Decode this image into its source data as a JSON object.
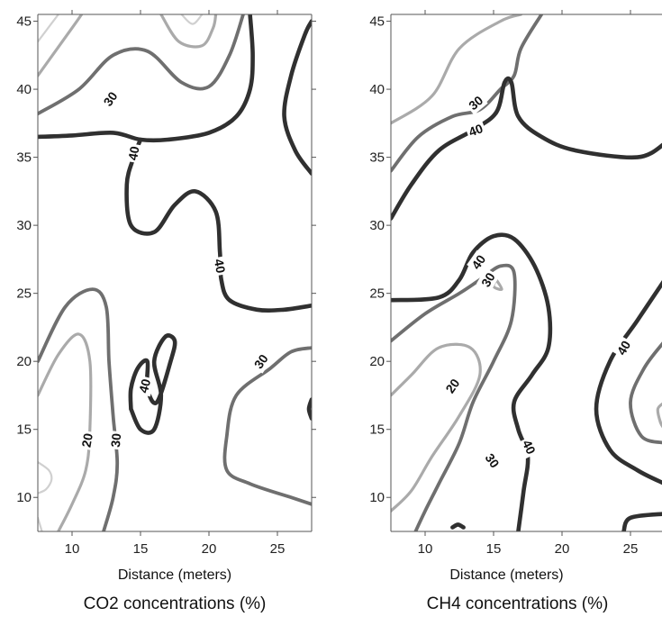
{
  "chart_data": [
    {
      "type": "contour",
      "title": "CO2 concentrations (%)",
      "xlabel": "Distance (meters)",
      "ylabel": "",
      "xlim": [
        7.5,
        27.5
      ],
      "ylim": [
        7.5,
        45.5
      ],
      "xticks": [
        10,
        15,
        20,
        25
      ],
      "yticks": [
        10,
        15,
        20,
        25,
        30,
        35,
        40,
        45
      ],
      "contour_levels": [
        10,
        20,
        30,
        40
      ],
      "level_colors": {
        "10": "#d0d0d0",
        "20": "#aaaaaa",
        "30": "#6f6f6f",
        "40": "#303030"
      },
      "contours": [
        {
          "level": 10,
          "points": [
            [
              7.5,
              43.5
            ],
            [
              9.0,
              45.5
            ]
          ]
        },
        {
          "level": 10,
          "points": [
            [
              7.5,
              12.6
            ],
            [
              8.3,
              12.0
            ],
            [
              8.5,
              11.3
            ],
            [
              8.1,
              10.6
            ],
            [
              7.5,
              10.3
            ]
          ]
        },
        {
          "level": 10,
          "points": [
            [
              7.5,
              8.5
            ],
            [
              7.8,
              7.5
            ]
          ]
        },
        {
          "level": 10,
          "points": [
            [
              18.0,
              45.5
            ],
            [
              18.8,
              44.8
            ],
            [
              19.5,
              45.5
            ]
          ]
        },
        {
          "level": 20,
          "points": [
            [
              7.5,
              41.0
            ],
            [
              10.0,
              44.5
            ],
            [
              10.7,
              45.5
            ]
          ]
        },
        {
          "level": 20,
          "points": [
            [
              16.5,
              45.5
            ],
            [
              17.8,
              43.5
            ],
            [
              19.5,
              43.2
            ],
            [
              20.3,
              44.5
            ],
            [
              20.5,
              45.5
            ]
          ]
        },
        {
          "level": 20,
          "points": [
            [
              7.5,
              17.5
            ],
            [
              9.0,
              20.5
            ],
            [
              10.5,
              22.0
            ],
            [
              11.3,
              20.0
            ],
            [
              11.3,
              15.0
            ],
            [
              11.0,
              12.0
            ],
            [
              10.0,
              9.5
            ],
            [
              9.0,
              7.5
            ]
          ]
        },
        {
          "level": 30,
          "points": [
            [
              7.5,
              38.2
            ],
            [
              10.5,
              40.0
            ],
            [
              13.0,
              42.5
            ],
            [
              15.5,
              42.8
            ],
            [
              18.0,
              40.5
            ],
            [
              20.0,
              40.2
            ],
            [
              21.5,
              42.5
            ],
            [
              22.5,
              45.5
            ]
          ]
        },
        {
          "level": 30,
          "points": [
            [
              7.5,
              20.0
            ],
            [
              9.5,
              24.0
            ],
            [
              11.5,
              25.3
            ],
            [
              12.5,
              24.0
            ],
            [
              12.7,
              20.0
            ],
            [
              13.0,
              16.0
            ],
            [
              13.3,
              12.5
            ],
            [
              13.0,
              10.0
            ],
            [
              12.3,
              7.5
            ]
          ]
        },
        {
          "level": 30,
          "points": [
            [
              27.5,
              21.0
            ],
            [
              26.0,
              20.7
            ],
            [
              24.5,
              19.5
            ],
            [
              22.0,
              17.5
            ],
            [
              21.3,
              14.5
            ],
            [
              21.3,
              12.0
            ],
            [
              23.0,
              11.0
            ],
            [
              26.0,
              10.0
            ],
            [
              27.5,
              9.5
            ]
          ]
        },
        {
          "level": 40,
          "points": [
            [
              7.5,
              36.5
            ],
            [
              10.0,
              36.6
            ],
            [
              13.0,
              36.8
            ],
            [
              15.0,
              36.3
            ],
            [
              17.0,
              36.3
            ],
            [
              20.0,
              36.8
            ],
            [
              22.0,
              38.0
            ],
            [
              23.0,
              40.0
            ],
            [
              23.2,
              42.5
            ],
            [
              23.0,
              45.5
            ]
          ]
        },
        {
          "level": 40,
          "points": [
            [
              27.5,
              33.8
            ],
            [
              26.3,
              35.5
            ],
            [
              25.5,
              38.0
            ],
            [
              26.0,
              41.0
            ],
            [
              27.0,
              44.0
            ],
            [
              27.5,
              45.0
            ]
          ]
        },
        {
          "level": 40,
          "points": [
            [
              15.0,
              36.3
            ],
            [
              14.5,
              35.0
            ],
            [
              14.0,
              33.0
            ],
            [
              14.3,
              30.0
            ],
            [
              16.0,
              29.5
            ],
            [
              17.5,
              31.5
            ],
            [
              19.0,
              32.5
            ],
            [
              20.5,
              31.0
            ],
            [
              20.8,
              28.0
            ],
            [
              20.9,
              26.0
            ],
            [
              21.5,
              24.5
            ],
            [
              23.5,
              23.8
            ],
            [
              25.5,
              23.8
            ],
            [
              27.5,
              24.1
            ]
          ]
        },
        {
          "level": 40,
          "points": [
            [
              14.3,
              16.5
            ],
            [
              15.0,
              15.0
            ],
            [
              16.0,
              15.0
            ],
            [
              16.5,
              17.5
            ],
            [
              16.0,
              20.0
            ],
            [
              16.8,
              21.8
            ],
            [
              17.5,
              21.5
            ],
            [
              17.2,
              20.0
            ],
            [
              16.2,
              17.0
            ],
            [
              15.5,
              18.0
            ],
            [
              15.5,
              20.0
            ],
            [
              14.8,
              19.5
            ],
            [
              14.3,
              18.0
            ],
            [
              14.3,
              16.5
            ]
          ]
        },
        {
          "level": 40,
          "points": [
            [
              27.5,
              17.2
            ],
            [
              27.3,
              16.5
            ],
            [
              27.5,
              15.8
            ]
          ]
        }
      ],
      "annotations": [
        {
          "text": "30",
          "x": 12.8,
          "y": 39.3,
          "rotate": -55
        },
        {
          "text": "40",
          "x": 14.5,
          "y": 35.3,
          "rotate": -80
        },
        {
          "text": "40",
          "x": 20.8,
          "y": 27.0,
          "rotate": 80
        },
        {
          "text": "40",
          "x": 15.3,
          "y": 18.2,
          "rotate": -75
        },
        {
          "text": "30",
          "x": 23.8,
          "y": 20.0,
          "rotate": -55
        },
        {
          "text": "20",
          "x": 11.1,
          "y": 14.2,
          "rotate": -80
        },
        {
          "text": "30",
          "x": 13.2,
          "y": 14.2,
          "rotate": -85
        }
      ]
    },
    {
      "type": "contour",
      "title": "CH4 concentrations (%)",
      "xlabel": "Distance (meters)",
      "ylabel": "",
      "xlim": [
        7.5,
        27.5
      ],
      "ylim": [
        7.5,
        45.5
      ],
      "xticks": [
        10,
        15,
        20,
        25
      ],
      "yticks": [
        10,
        15,
        20,
        25,
        30,
        35,
        40,
        45
      ],
      "contour_levels": [
        10,
        20,
        30,
        40
      ],
      "level_colors": {
        "10": "#d0d0d0",
        "20": "#aaaaaa",
        "30": "#6f6f6f",
        "40": "#303030"
      },
      "contours": [
        {
          "level": 20,
          "points": [
            [
              7.5,
              37.5
            ],
            [
              10.5,
              39.5
            ],
            [
              12.5,
              43.0
            ],
            [
              15.5,
              45.0
            ],
            [
              17.0,
              45.5
            ]
          ]
        },
        {
          "level": 20,
          "points": [
            [
              7.5,
              17.5
            ],
            [
              9.0,
              19.0
            ],
            [
              11.0,
              21.0
            ],
            [
              13.3,
              21.0
            ],
            [
              14.0,
              19.0
            ],
            [
              12.5,
              16.0
            ],
            [
              10.5,
              13.0
            ],
            [
              9.0,
              10.5
            ],
            [
              7.5,
              9.0
            ]
          ]
        },
        {
          "level": 20,
          "points": [
            [
              15.2,
              26.0
            ],
            [
              15.6,
              25.3
            ],
            [
              15.0,
              25.5
            ],
            [
              15.2,
              26.0
            ]
          ]
        },
        {
          "level": 20,
          "points": [
            [
              27.5,
              17.0
            ],
            [
              27.0,
              16.5
            ],
            [
              27.2,
              15.5
            ],
            [
              27.5,
              15.0
            ]
          ]
        },
        {
          "level": 30,
          "points": [
            [
              7.5,
              34.0
            ],
            [
              9.5,
              36.5
            ],
            [
              12.0,
              38.0
            ],
            [
              14.0,
              38.5
            ],
            [
              15.5,
              40.0
            ],
            [
              16.5,
              41.0
            ],
            [
              17.0,
              43.0
            ],
            [
              18.5,
              45.5
            ]
          ]
        },
        {
          "level": 30,
          "points": [
            [
              7.5,
              21.5
            ],
            [
              10.0,
              23.5
            ],
            [
              12.5,
              25.0
            ],
            [
              14.0,
              26.0
            ],
            [
              15.5,
              27.0
            ],
            [
              16.5,
              26.5
            ],
            [
              16.3,
              23.0
            ],
            [
              15.0,
              20.0
            ],
            [
              13.5,
              17.0
            ],
            [
              12.5,
              14.0
            ],
            [
              11.0,
              11.0
            ],
            [
              10.0,
              9.0
            ],
            [
              9.3,
              7.5
            ]
          ]
        },
        {
          "level": 30,
          "points": [
            [
              27.5,
              21.5
            ],
            [
              26.0,
              19.5
            ],
            [
              25.0,
              17.0
            ],
            [
              25.8,
              14.5
            ],
            [
              27.5,
              14.0
            ]
          ]
        },
        {
          "level": 40,
          "points": [
            [
              7.5,
              30.5
            ],
            [
              9.0,
              33.0
            ],
            [
              11.0,
              35.5
            ],
            [
              13.5,
              37.0
            ],
            [
              15.2,
              38.3
            ],
            [
              15.8,
              40.5
            ],
            [
              16.3,
              40.5
            ],
            [
              16.8,
              38.0
            ],
            [
              18.5,
              36.5
            ],
            [
              21.0,
              35.5
            ],
            [
              25.5,
              35.0
            ],
            [
              27.5,
              36.0
            ]
          ]
        },
        {
          "level": 40,
          "points": [
            [
              7.5,
              24.5
            ],
            [
              11.0,
              24.7
            ],
            [
              12.5,
              26.0
            ],
            [
              13.5,
              28.0
            ],
            [
              15.0,
              29.2
            ],
            [
              16.5,
              29.0
            ],
            [
              18.0,
              27.0
            ],
            [
              19.0,
              24.0
            ],
            [
              19.0,
              21.0
            ],
            [
              17.8,
              19.0
            ],
            [
              16.5,
              17.0
            ],
            [
              16.8,
              15.0
            ],
            [
              17.5,
              13.0
            ],
            [
              17.2,
              10.5
            ],
            [
              16.8,
              7.5
            ]
          ]
        },
        {
          "level": 40,
          "points": [
            [
              27.5,
              26.0
            ],
            [
              25.5,
              23.0
            ],
            [
              23.5,
              20.0
            ],
            [
              22.5,
              16.5
            ],
            [
              23.5,
              13.5
            ],
            [
              25.5,
              12.0
            ],
            [
              27.5,
              11.0
            ]
          ]
        },
        {
          "level": 40,
          "points": [
            [
              24.5,
              7.5
            ],
            [
              25.0,
              8.5
            ],
            [
              27.5,
              8.8
            ]
          ]
        },
        {
          "level": 40,
          "points": [
            [
              12.0,
              7.8
            ],
            [
              12.4,
              8.0
            ],
            [
              12.8,
              7.8
            ]
          ]
        }
      ],
      "annotations": [
        {
          "text": "30",
          "x": 13.7,
          "y": 39.0,
          "rotate": -40
        },
        {
          "text": "40",
          "x": 13.7,
          "y": 37.0,
          "rotate": -20
        },
        {
          "text": "40",
          "x": 13.9,
          "y": 27.3,
          "rotate": -55
        },
        {
          "text": "30",
          "x": 14.6,
          "y": 26.0,
          "rotate": -60
        },
        {
          "text": "40",
          "x": 24.5,
          "y": 21.0,
          "rotate": -60
        },
        {
          "text": "20",
          "x": 12.0,
          "y": 18.2,
          "rotate": -55
        },
        {
          "text": "30",
          "x": 14.9,
          "y": 12.7,
          "rotate": 55
        },
        {
          "text": "40",
          "x": 17.6,
          "y": 13.7,
          "rotate": 65
        }
      ]
    }
  ]
}
